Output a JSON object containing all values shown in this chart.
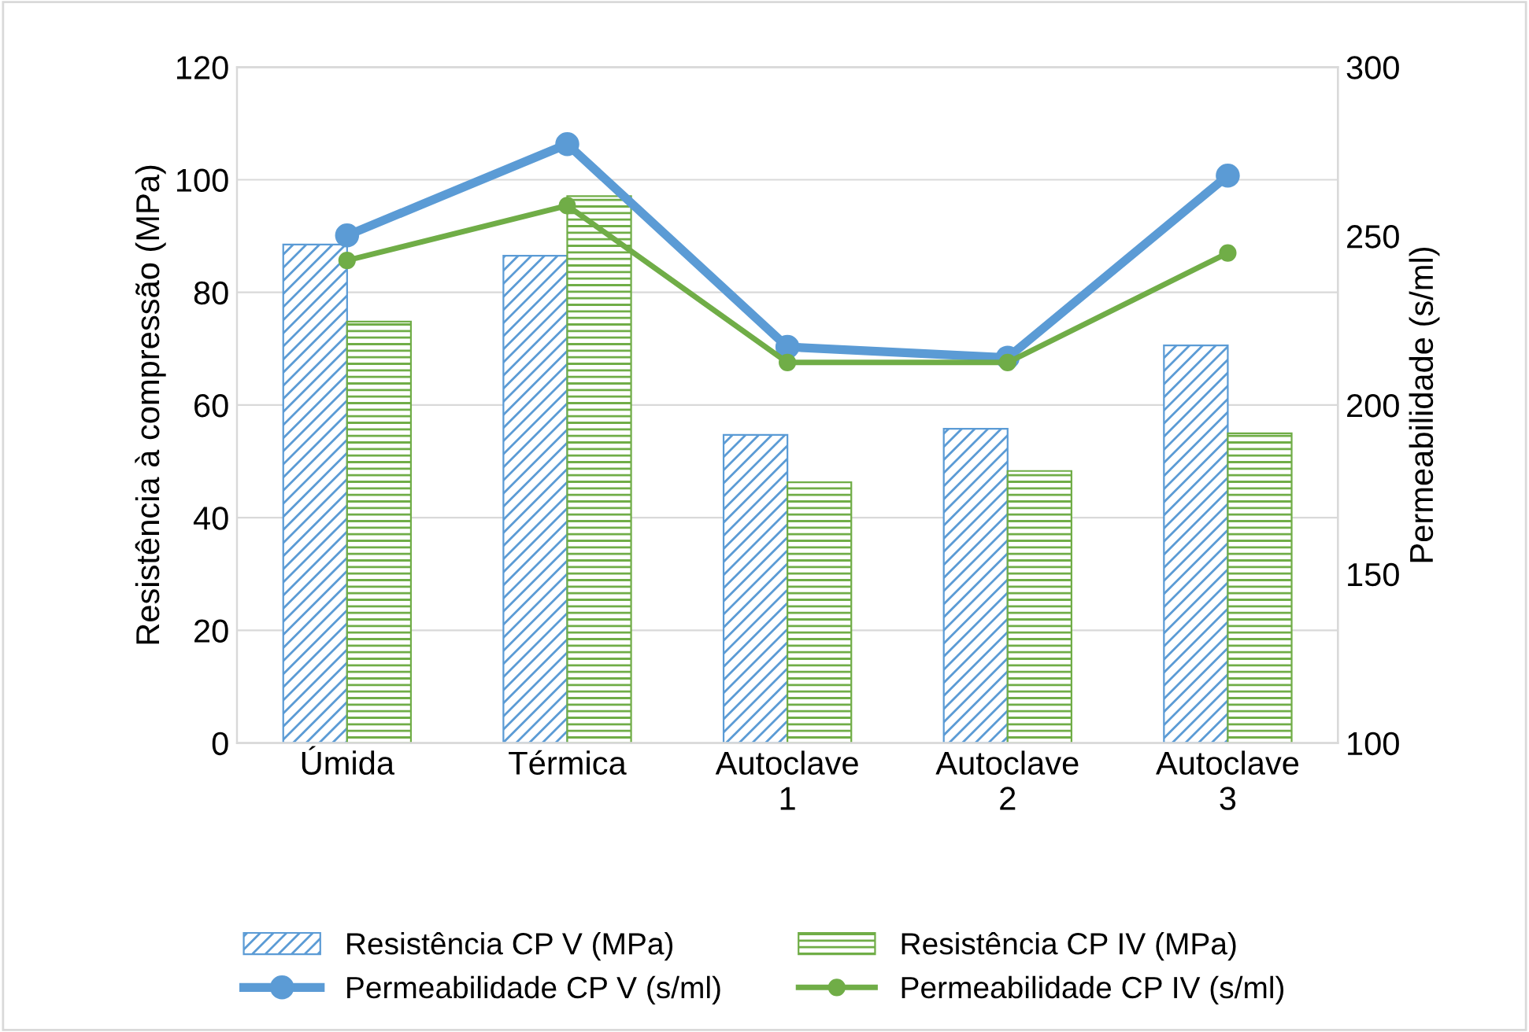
{
  "chart_data": {
    "type": "bar",
    "ylabel": "Resistência à compressão (MPa)",
    "y2label": "Permeabilidade (s/ml)",
    "categories": [
      "Úmida",
      "Térmica",
      "Autoclave\n1",
      "Autoclave\n2",
      "Autoclave\n3"
    ],
    "series": [
      {
        "name": "Resistência CP V (MPa)",
        "color": "#5b9bd5",
        "values": [
          88.5,
          86.5,
          54.7,
          55.8,
          70.6
        ]
      },
      {
        "name": "Resistência CP IV (MPa)",
        "color": "#70ad47",
        "values": [
          74.8,
          97.1,
          46.3,
          48.3,
          55.0
        ]
      },
      {
        "name": "Permeabilidade CP V (s/ml)",
        "type": "line",
        "axis": "y2",
        "color": "#5b9bd5",
        "values": [
          250.2,
          277.2,
          217.2,
          214.0,
          267.9
        ]
      },
      {
        "name": "Permeabilidade CP IV (s/ml)",
        "type": "line",
        "axis": "y2",
        "color": "#70ad47",
        "values": [
          242.8,
          259.0,
          212.6,
          212.6,
          245.0
        ]
      }
    ],
    "ylim": [
      0,
      120
    ],
    "yticks": [
      0,
      20,
      40,
      60,
      80,
      100,
      120
    ],
    "y2lim": [
      100,
      300
    ],
    "y2ticks": [
      100,
      150,
      200,
      250,
      300
    ],
    "grid": "y",
    "legend": "bottom",
    "marker": "circle",
    "line_style": "solid"
  }
}
